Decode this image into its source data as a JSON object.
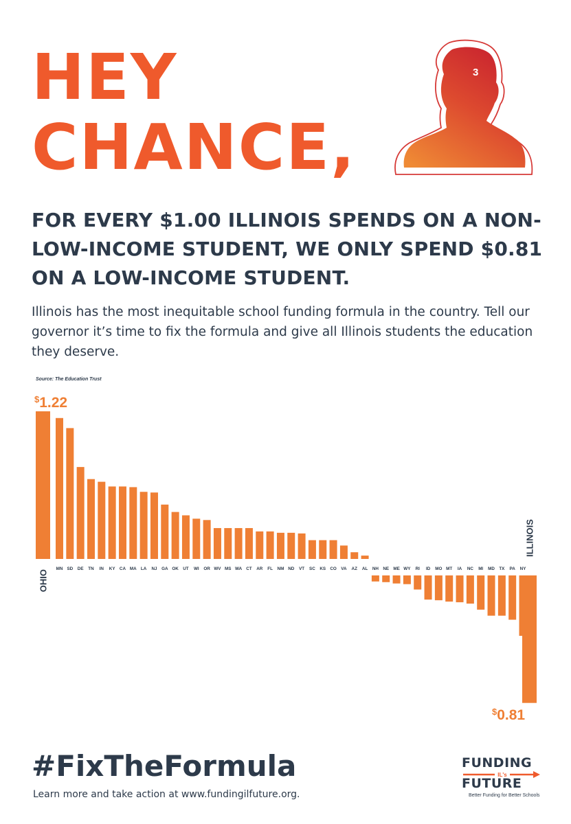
{
  "headline": {
    "line1": "HEY",
    "line2": "CHANCE,"
  },
  "avatar": {
    "icon": "person-silhouette-icon",
    "cap_number": "3"
  },
  "subhead": "FOR EVERY $1.00 ILLINOIS SPENDS ON A NON-LOW-INCOME STUDENT, WE ONLY SPEND $0.81 ON A LOW-INCOME STUDENT.",
  "body": "Illinois has the most inequitable school funding formula in the country. Tell our governor it’s time to fix the formula and give all Illinois students the education they deserve.",
  "source": "Source: The Education Trust",
  "chart_data": {
    "type": "bar",
    "baseline": 1.0,
    "categories": [
      "OHIO",
      "MN",
      "SD",
      "DE",
      "TN",
      "IN",
      "KY",
      "CA",
      "MA",
      "LA",
      "NJ",
      "GA",
      "OK",
      "UT",
      "WI",
      "OR",
      "WV",
      "MS",
      "WA",
      "CT",
      "AR",
      "FL",
      "NM",
      "ND",
      "VT",
      "SC",
      "KS",
      "CO",
      "VA",
      "AZ",
      "AL",
      "NH",
      "NE",
      "ME",
      "WY",
      "RI",
      "ID",
      "MO",
      "MT",
      "IA",
      "NC",
      "MI",
      "MD",
      "TX",
      "PA",
      "NY",
      "ILLINOIS"
    ],
    "values": [
      1.22,
      1.21,
      1.195,
      1.137,
      1.119,
      1.115,
      1.108,
      1.108,
      1.107,
      1.1,
      1.099,
      1.081,
      1.07,
      1.065,
      1.06,
      1.058,
      1.046,
      1.046,
      1.046,
      1.046,
      1.041,
      1.041,
      1.039,
      1.039,
      1.038,
      1.028,
      1.028,
      1.028,
      1.02,
      1.01,
      1.005,
      0.991,
      0.99,
      0.988,
      0.987,
      0.979,
      0.964,
      0.963,
      0.961,
      0.96,
      0.958,
      0.949,
      0.94,
      0.94,
      0.934,
      0.91,
      0.81
    ],
    "highlight_labels": {
      "max": "1.22",
      "min": "0.81",
      "currency": "$"
    },
    "colors": {
      "bar": "#ef7f34",
      "text": "#2d3a4a"
    }
  },
  "footer": {
    "hashtag": "#FixTheFormula",
    "cta": "Learn more and take action at www.fundingilfuture.org."
  },
  "logo": {
    "top": "FUNDING",
    "badge": "IL's",
    "bottom": "FUTURE",
    "tagline": "Better Funding for Better Schools"
  }
}
